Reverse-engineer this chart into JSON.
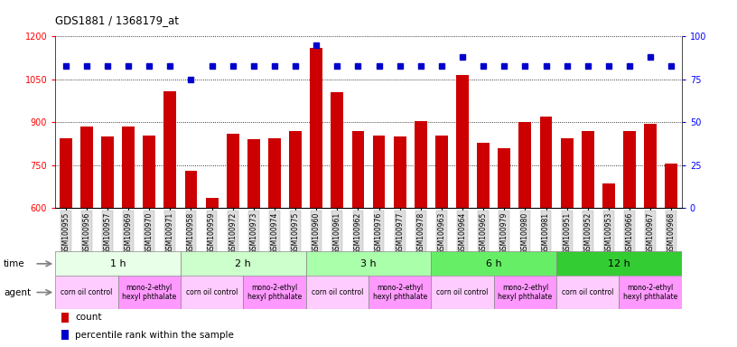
{
  "title": "GDS1881 / 1368179_at",
  "samples": [
    "GSM100955",
    "GSM100956",
    "GSM100957",
    "GSM100969",
    "GSM100970",
    "GSM100971",
    "GSM100958",
    "GSM100959",
    "GSM100972",
    "GSM100973",
    "GSM100974",
    "GSM100975",
    "GSM100960",
    "GSM100961",
    "GSM100962",
    "GSM100976",
    "GSM100977",
    "GSM100978",
    "GSM100963",
    "GSM100964",
    "GSM100965",
    "GSM100979",
    "GSM100980",
    "GSM100981",
    "GSM100951",
    "GSM100952",
    "GSM100953",
    "GSM100966",
    "GSM100967",
    "GSM100968"
  ],
  "counts": [
    845,
    885,
    850,
    885,
    855,
    1010,
    730,
    635,
    860,
    840,
    845,
    870,
    1160,
    1005,
    870,
    855,
    850,
    905,
    855,
    1065,
    830,
    810,
    900,
    920,
    845,
    870,
    685,
    870,
    895,
    755
  ],
  "percentiles": [
    83,
    83,
    83,
    83,
    83,
    83,
    75,
    83,
    83,
    83,
    83,
    83,
    95,
    83,
    83,
    83,
    83,
    83,
    83,
    88,
    83,
    83,
    83,
    83,
    83,
    83,
    83,
    83,
    88,
    83
  ],
  "time_groups": [
    {
      "label": "1 h",
      "start": 0,
      "end": 6,
      "color": "#e8ffe8"
    },
    {
      "label": "2 h",
      "start": 6,
      "end": 12,
      "color": "#ccffcc"
    },
    {
      "label": "3 h",
      "start": 12,
      "end": 18,
      "color": "#aaffaa"
    },
    {
      "label": "6 h",
      "start": 18,
      "end": 24,
      "color": "#66ee66"
    },
    {
      "label": "12 h",
      "start": 24,
      "end": 30,
      "color": "#33cc33"
    }
  ],
  "agent_groups": [
    {
      "label": "corn oil control",
      "start": 0,
      "end": 3,
      "color": "#ffccff"
    },
    {
      "label": "mono-2-ethyl\nhexyl phthalate",
      "start": 3,
      "end": 6,
      "color": "#ff99ff"
    },
    {
      "label": "corn oil control",
      "start": 6,
      "end": 9,
      "color": "#ffccff"
    },
    {
      "label": "mono-2-ethyl\nhexyl phthalate",
      "start": 9,
      "end": 12,
      "color": "#ff99ff"
    },
    {
      "label": "corn oil control",
      "start": 12,
      "end": 15,
      "color": "#ffccff"
    },
    {
      "label": "mono-2-ethyl\nhexyl phthalate",
      "start": 15,
      "end": 18,
      "color": "#ff99ff"
    },
    {
      "label": "corn oil control",
      "start": 18,
      "end": 21,
      "color": "#ffccff"
    },
    {
      "label": "mono-2-ethyl\nhexyl phthalate",
      "start": 21,
      "end": 24,
      "color": "#ff99ff"
    },
    {
      "label": "corn oil control",
      "start": 24,
      "end": 27,
      "color": "#ffccff"
    },
    {
      "label": "mono-2-ethyl\nhexyl phthalate",
      "start": 27,
      "end": 30,
      "color": "#ff99ff"
    }
  ],
  "bar_color": "#cc0000",
  "dot_color": "#0000cc",
  "ylim_left": [
    600,
    1200
  ],
  "ylim_right": [
    0,
    100
  ],
  "yticks_left": [
    600,
    750,
    900,
    1050,
    1200
  ],
  "yticks_right": [
    0,
    25,
    50,
    75,
    100
  ],
  "background_color": "#ffffff"
}
